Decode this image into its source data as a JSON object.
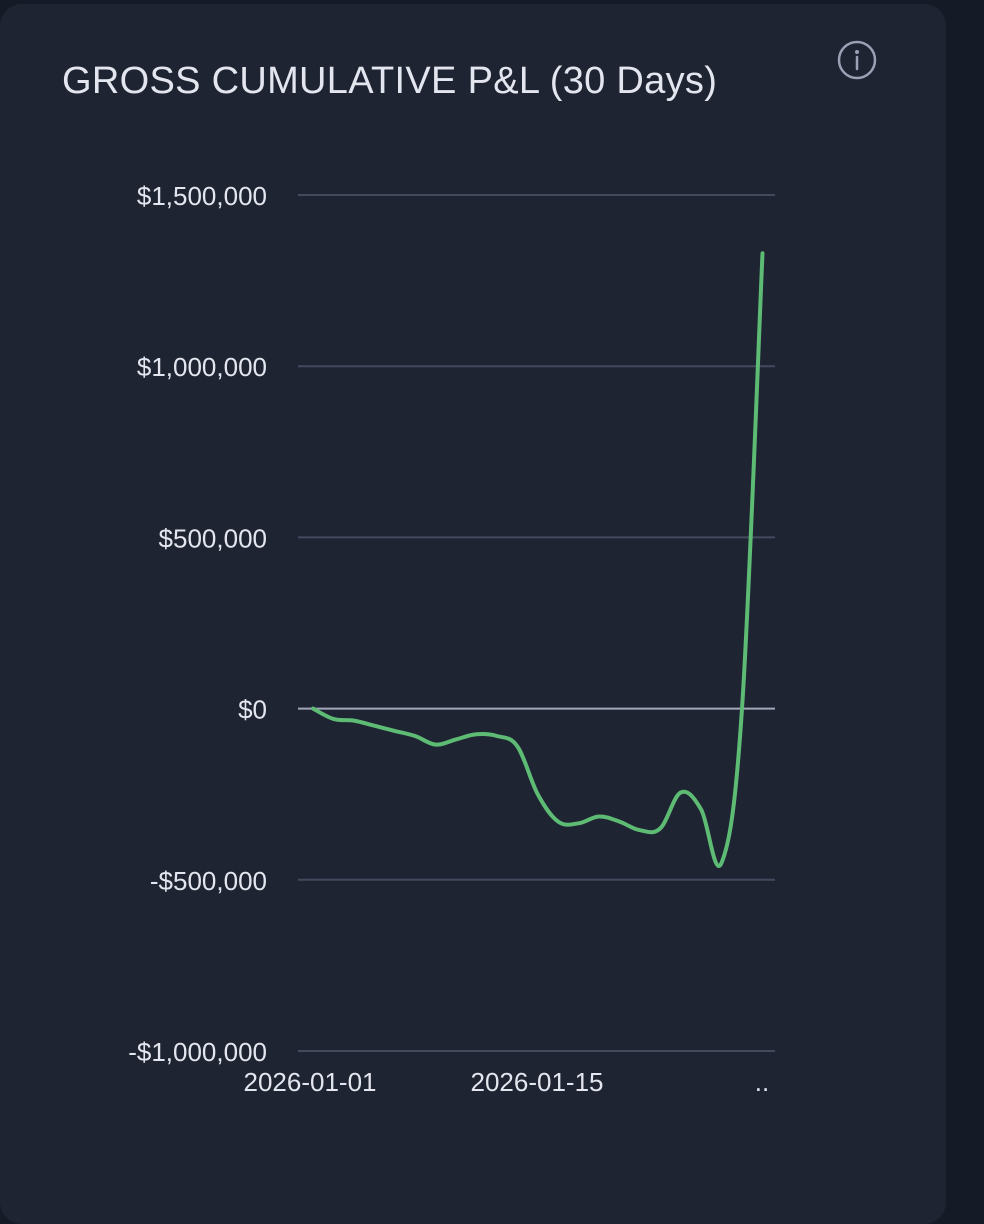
{
  "header": {
    "title": "GROSS CUMULATIVE P&L (30 Days)",
    "info_icon": "info-circle-icon"
  },
  "colors": {
    "line": "#5dbb74",
    "grid": "#434a5e",
    "zero_line": "#a2a8ba",
    "text": "#e3e6ee",
    "card_bg": "#1f2433"
  },
  "chart_data": {
    "type": "line",
    "title": "GROSS CUMULATIVE P&L (30 Days)",
    "xlabel": "",
    "ylabel": "",
    "ylim": [
      -1000000,
      1500000
    ],
    "y_ticks": [
      1500000,
      1000000,
      500000,
      0,
      -500000,
      -1000000
    ],
    "y_tick_labels": [
      "$1,500,000",
      "$1,000,000",
      "$500,000",
      "$0",
      "-$500,000",
      "-$1,000,000"
    ],
    "x_tick_labels": [
      "2026-01-01",
      "2026-01-15",
      ".."
    ],
    "grid": true,
    "series": [
      {
        "color": "#5dbb74",
        "points": [
          {
            "x": "2026-01-01",
            "y": 0
          },
          {
            "x": "2026-01-02",
            "y": -30000
          },
          {
            "x": "2026-01-03",
            "y": -35000
          },
          {
            "x": "2026-01-04",
            "y": -50000
          },
          {
            "x": "2026-01-05",
            "y": -65000
          },
          {
            "x": "2026-01-06",
            "y": -80000
          },
          {
            "x": "2026-01-07",
            "y": -105000
          },
          {
            "x": "2026-01-08",
            "y": -90000
          },
          {
            "x": "2026-01-09",
            "y": -75000
          },
          {
            "x": "2026-01-10",
            "y": -80000
          },
          {
            "x": "2026-01-11",
            "y": -110000
          },
          {
            "x": "2026-01-12",
            "y": -250000
          },
          {
            "x": "2026-01-13",
            "y": -330000
          },
          {
            "x": "2026-01-14",
            "y": -335000
          },
          {
            "x": "2026-01-15",
            "y": -315000
          },
          {
            "x": "2026-01-16",
            "y": -330000
          },
          {
            "x": "2026-01-17",
            "y": -355000
          },
          {
            "x": "2026-01-18",
            "y": -350000
          },
          {
            "x": "2026-01-19",
            "y": -245000
          },
          {
            "x": "2026-01-20",
            "y": -295000
          },
          {
            "x": "2026-01-21",
            "y": -450000
          },
          {
            "x": "2026-01-22",
            "y": 0
          },
          {
            "x": "2026-01-23",
            "y": 1330000
          }
        ]
      }
    ]
  }
}
